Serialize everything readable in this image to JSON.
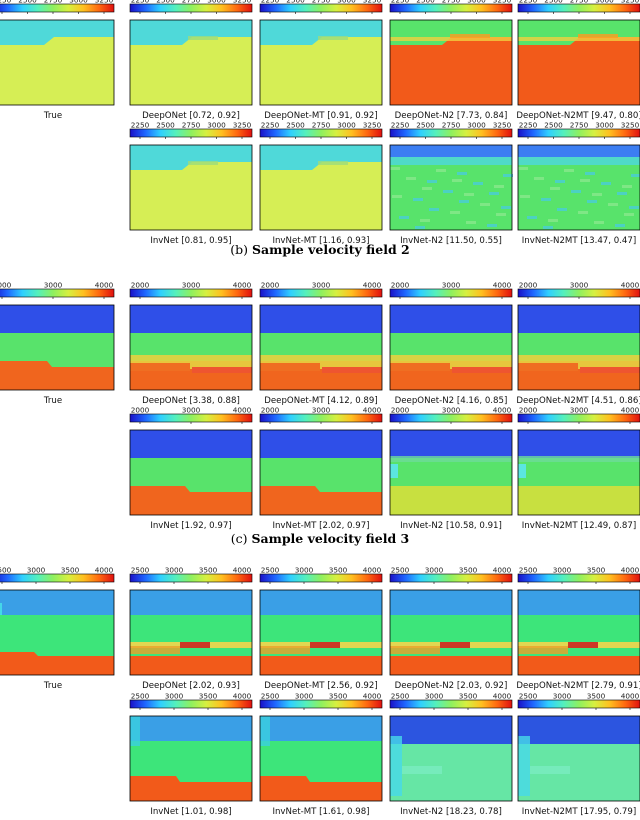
{
  "colorscale": [
    "#1a10c8",
    "#1f66ff",
    "#2fd0ff",
    "#54f0bc",
    "#8ef060",
    "#d6f040",
    "#ffc020",
    "#ff6a10",
    "#e01010"
  ],
  "colors": {
    "top": "#4fd9d9",
    "top_field3": "#3a9fe6",
    "mid_field3": "#3de57a",
    "yellow": "#d6ee55",
    "red": "#f25a1a",
    "blue": "#2f4fe8",
    "green": "#58e36b",
    "orange": "#f0651e"
  },
  "sections": [
    {
      "title": "",
      "ticks": [
        "2250",
        "2500",
        "2750",
        "3000",
        "3250"
      ],
      "panels": [
        {
          "caption": "True",
          "scheme": "s1_true"
        },
        {
          "caption": "DeepONet [0.72, 0.92]",
          "scheme": "s1_pred"
        },
        {
          "caption": "DeepONet-MT [0.91, 0.92]",
          "scheme": "s1_pred"
        },
        {
          "caption": "DeepONet-N2 [7.73, 0.84]",
          "scheme": "s1_red"
        },
        {
          "caption": "DeepONet-N2MT [9.47, 0.80]",
          "scheme": "s1_red"
        },
        {
          "caption": "InvNet [0.81, 0.95]",
          "scheme": "s1_pred"
        },
        {
          "caption": "InvNet-MT [1.16, 0.93]",
          "scheme": "s1_pred"
        },
        {
          "caption": "InvNet-N2 [11.50, 0.55]",
          "scheme": "s1_noisy"
        },
        {
          "caption": "InvNet-N2MT [13.47, 0.47]",
          "scheme": "s1_noisy"
        }
      ]
    },
    {
      "title": "(b) Sample velocity field 2",
      "ticks": [
        "2000",
        "3000",
        "4000"
      ],
      "panels": [
        {
          "caption": "True",
          "scheme": "s2_true"
        },
        {
          "caption": "DeepONet [3.38, 0.88]",
          "scheme": "s2_pred"
        },
        {
          "caption": "DeepONet-MT [4.12, 0.89]",
          "scheme": "s2_pred"
        },
        {
          "caption": "DeepONet-N2 [4.16, 0.85]",
          "scheme": "s2_pred"
        },
        {
          "caption": "DeepONet-N2MT [4.51, 0.86]",
          "scheme": "s2_pred"
        },
        {
          "caption": "InvNet [1.92, 0.97]",
          "scheme": "s2_true"
        },
        {
          "caption": "InvNet-MT [2.02, 0.97]",
          "scheme": "s2_true"
        },
        {
          "caption": "InvNet-N2 [10.58, 0.91]",
          "scheme": "s2_noisy"
        },
        {
          "caption": "InvNet-N2MT [12.49, 0.87]",
          "scheme": "s2_noisy"
        }
      ]
    },
    {
      "title": "(c) Sample velocity field 3",
      "ticks": [
        "2500",
        "3000",
        "3500",
        "4000"
      ],
      "panels": [
        {
          "caption": "True",
          "scheme": "s3_true"
        },
        {
          "caption": "DeepONet [2.02, 0.93]",
          "scheme": "s3_pred"
        },
        {
          "caption": "DeepONet-MT [2.56, 0.92]",
          "scheme": "s3_pred"
        },
        {
          "caption": "DeepONet-N2 [2.03, 0.92]",
          "scheme": "s3_pred"
        },
        {
          "caption": "DeepONet-N2MT [2.79, 0.91]",
          "scheme": "s3_pred"
        },
        {
          "caption": "InvNet [1.01, 0.98]",
          "scheme": "s3_inv"
        },
        {
          "caption": "InvNet-MT [1.61, 0.98]",
          "scheme": "s3_inv"
        },
        {
          "caption": "InvNet-N2 [18.23, 0.78]",
          "scheme": "s3_noisy"
        },
        {
          "caption": "InvNet-N2MT [17.95, 0.79]",
          "scheme": "s3_noisy"
        }
      ]
    }
  ],
  "chart_data": {
    "type": "heatmap",
    "fields": [
      {
        "name": "",
        "colorbar_ticks": [
          2250,
          2500,
          2750,
          3000,
          3250
        ],
        "models": [
          "True",
          "DeepONet",
          "DeepONet-MT",
          "DeepONet-N2",
          "DeepONet-N2MT",
          "InvNet",
          "InvNet-MT",
          "InvNet-N2",
          "InvNet-N2MT"
        ],
        "metrics": [
          null,
          [
            0.72,
            0.92
          ],
          [
            0.91,
            0.92
          ],
          [
            7.73,
            0.84
          ],
          [
            9.47,
            0.8
          ],
          [
            0.81,
            0.95
          ],
          [
            1.16,
            0.93
          ],
          [
            11.5,
            0.55
          ],
          [
            13.47,
            0.47
          ]
        ]
      },
      {
        "name": "(b) Sample velocity field 2",
        "colorbar_ticks": [
          2000,
          3000,
          4000
        ],
        "models": [
          "True",
          "DeepONet",
          "DeepONet-MT",
          "DeepONet-N2",
          "DeepONet-N2MT",
          "InvNet",
          "InvNet-MT",
          "InvNet-N2",
          "InvNet-N2MT"
        ],
        "metrics": [
          null,
          [
            3.38,
            0.88
          ],
          [
            4.12,
            0.89
          ],
          [
            4.16,
            0.85
          ],
          [
            4.51,
            0.86
          ],
          [
            1.92,
            0.97
          ],
          [
            2.02,
            0.97
          ],
          [
            10.58,
            0.91
          ],
          [
            12.49,
            0.87
          ]
        ]
      },
      {
        "name": "(c) Sample velocity field 3",
        "colorbar_ticks": [
          2500,
          3000,
          3500,
          4000
        ],
        "models": [
          "True",
          "DeepONet",
          "DeepONet-MT",
          "DeepONet-N2",
          "DeepONet-N2MT",
          "InvNet",
          "InvNet-MT",
          "InvNet-N2",
          "InvNet-N2MT"
        ],
        "metrics": [
          null,
          [
            2.02,
            0.93
          ],
          [
            2.56,
            0.92
          ],
          [
            2.03,
            0.92
          ],
          [
            2.79,
            0.91
          ],
          [
            1.01,
            0.98
          ],
          [
            1.61,
            0.98
          ],
          [
            18.23,
            0.78
          ],
          [
            17.95,
            0.79
          ]
        ]
      }
    ]
  }
}
